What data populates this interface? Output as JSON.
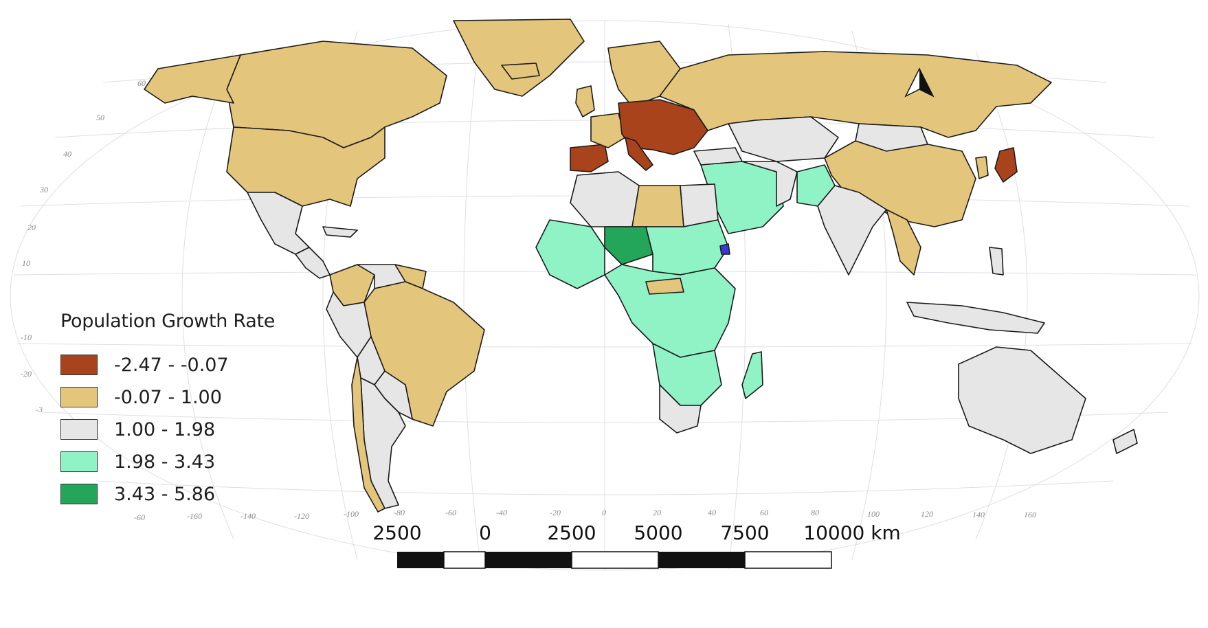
{
  "legend": {
    "title": "Population Growth Rate",
    "classes": [
      {
        "label": "-2.47 - -0.07",
        "color": "#a8431c"
      },
      {
        "label": "-0.07 - 1.00",
        "color": "#e3c57b"
      },
      {
        "label": "1.00 - 1.98",
        "color": "#e6e6e6"
      },
      {
        "label": "1.98 - 3.43",
        "color": "#8ff3c5"
      },
      {
        "label": "3.43 - 5.86",
        "color": "#23a55a"
      }
    ]
  },
  "scale_bar": {
    "labels": [
      "2500",
      "0",
      "2500",
      "5000",
      "7500",
      "10000 km"
    ]
  },
  "latitude_labels": [
    "60",
    "50",
    "40",
    "30",
    "20",
    "10",
    "-10",
    "-20",
    "-3"
  ],
  "longitude_labels": [
    "-60",
    "-160",
    "-140",
    "-120",
    "-100",
    "-80",
    "-60",
    "-40",
    "-20",
    "0",
    "20",
    "40",
    "60",
    "80",
    "100",
    "120",
    "140",
    "160"
  ],
  "north_arrow": {
    "icon": "north-arrow-icon"
  }
}
